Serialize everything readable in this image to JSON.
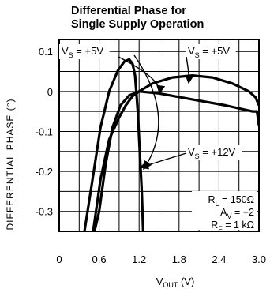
{
  "chart_data": {
    "type": "line",
    "title_lines": [
      "Differential Phase for",
      "Single Supply Operation"
    ],
    "xlabel_main": "V",
    "xlabel_sub": "OUT",
    "xlabel_unit": " (V)",
    "ylabel": "DIFFERENTIAL PHASE (°)",
    "xlim": [
      0,
      3.0
    ],
    "ylim": [
      -0.35,
      0.13
    ],
    "grid": true,
    "x_ticks": [
      {
        "value": 0,
        "label": "0"
      },
      {
        "value": 0.6,
        "label": "0.6"
      },
      {
        "value": 1.2,
        "label": "1.2"
      },
      {
        "value": 1.8,
        "label": "1.8"
      },
      {
        "value": 2.4,
        "label": "2.4"
      },
      {
        "value": 3.0,
        "label": "3.0"
      }
    ],
    "y_ticks": [
      {
        "value": 0.1,
        "label": "0.1"
      },
      {
        "value": 0,
        "label": "0"
      },
      {
        "value": -0.1,
        "label": "-0.1"
      },
      {
        "value": -0.2,
        "label": "-0.2"
      },
      {
        "value": -0.3,
        "label": "-0.3"
      }
    ],
    "series": [
      {
        "label_main": "V",
        "label_sub": "S",
        "label_rest": " = +5V",
        "points": [
          [
            0.38,
            -0.35
          ],
          [
            0.5,
            -0.22
          ],
          [
            0.62,
            -0.09
          ],
          [
            0.75,
            0.0
          ],
          [
            0.88,
            0.052
          ],
          [
            0.98,
            0.075
          ],
          [
            1.05,
            0.08
          ],
          [
            1.1,
            0.07
          ],
          [
            1.14,
            0.04
          ],
          [
            1.18,
            -0.05
          ],
          [
            1.21,
            -0.15
          ],
          [
            1.24,
            -0.25
          ],
          [
            1.26,
            -0.35
          ]
        ]
      },
      {
        "label_main": "V",
        "label_sub": "S",
        "label_rest": " = +5V",
        "points": [
          [
            0.51,
            -0.35
          ],
          [
            0.62,
            -0.22
          ],
          [
            0.75,
            -0.12
          ],
          [
            0.9,
            -0.065
          ],
          [
            1.0,
            -0.035
          ],
          [
            1.1,
            -0.012
          ],
          [
            1.2,
            0.0
          ],
          [
            1.4,
            0.02
          ],
          [
            1.7,
            0.035
          ],
          [
            2.0,
            0.04
          ],
          [
            2.3,
            0.035
          ],
          [
            2.6,
            0.02
          ],
          [
            2.85,
            0.0
          ],
          [
            2.95,
            -0.015
          ],
          [
            3.0,
            -0.035
          ]
        ]
      },
      {
        "label_main": "V",
        "label_sub": "S",
        "label_rest": " = +12V",
        "points": [
          [
            0.53,
            -0.35
          ],
          [
            0.6,
            -0.3
          ],
          [
            0.7,
            -0.18
          ],
          [
            0.8,
            -0.09
          ],
          [
            0.92,
            -0.035
          ],
          [
            1.05,
            -0.01
          ],
          [
            1.2,
            0.0
          ],
          [
            1.5,
            -0.005
          ],
          [
            2.0,
            -0.02
          ],
          [
            2.5,
            -0.035
          ],
          [
            2.9,
            -0.05
          ],
          [
            2.97,
            -0.05
          ],
          [
            3.0,
            -0.085
          ]
        ]
      }
    ],
    "annotations": [
      {
        "main": "R",
        "sub": "L",
        "rest": " = 150Ω"
      },
      {
        "main": "A",
        "sub": "V",
        "rest": " = +2"
      },
      {
        "main": "R",
        "sub": "F",
        "rest": " = 1 kΩ"
      }
    ]
  }
}
